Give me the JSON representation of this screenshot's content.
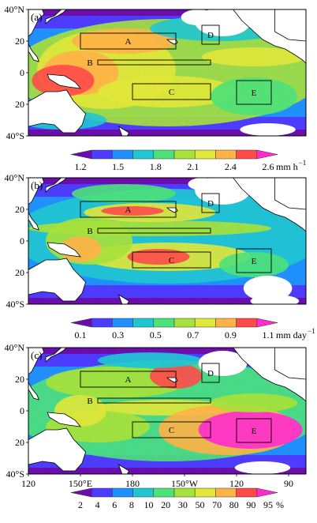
{
  "panels": [
    {
      "label": "(a)",
      "y_ticks": [
        "40°N",
        "20",
        "0",
        "20",
        "40°S"
      ],
      "boxes": [
        "A",
        "B",
        "C",
        "D",
        "E"
      ],
      "colorbar": {
        "ticks": [
          "1.2",
          "1.5",
          "1.8",
          "2.1",
          "2.4",
          "2.6"
        ],
        "unit": "mm h",
        "unit_sup": "−1"
      }
    },
    {
      "label": "(b)",
      "y_ticks": [
        "40°N",
        "20",
        "0",
        "20",
        "40°S"
      ],
      "boxes": [
        "A",
        "B",
        "C",
        "D",
        "E"
      ],
      "colorbar": {
        "ticks": [
          "0.1",
          "0.3",
          "0.5",
          "0.7",
          "0.9",
          "1.1"
        ],
        "unit": "mm day",
        "unit_sup": "−1"
      }
    },
    {
      "label": "(c)",
      "y_ticks": [
        "40°N",
        "20",
        "0",
        "20",
        "40°S"
      ],
      "boxes": [
        "A",
        "B",
        "C",
        "D",
        "E"
      ],
      "colorbar": {
        "ticks": [
          "2",
          "4",
          "6",
          "8",
          "10",
          "20",
          "30",
          "50",
          "70",
          "80",
          "90",
          "95"
        ],
        "unit": "%",
        "unit_sup": ""
      }
    }
  ],
  "x_ticks": [
    "120",
    "150°E",
    "180",
    "150°W",
    "120",
    "90"
  ],
  "colors": {
    "scale": [
      "#6a0dad",
      "#4b3cff",
      "#1e90ff",
      "#1ec8d2",
      "#4be27a",
      "#a6e23a",
      "#e0e83a",
      "#ffb347",
      "#ff4a4a",
      "#ff2bd0"
    ],
    "land": "#ffffff",
    "coast": "#000000"
  }
}
